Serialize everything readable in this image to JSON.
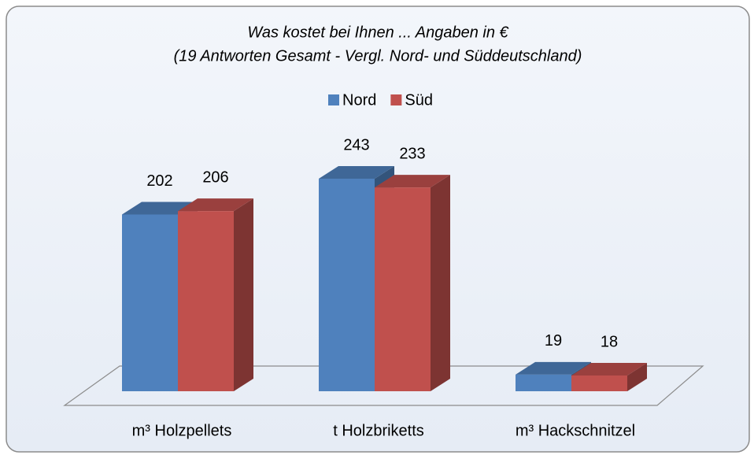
{
  "chart_data": {
    "type": "bar",
    "title": "Was kostet bei Ihnen ... Angaben in €",
    "subtitle": "(19 Antworten Gesamt - Vergl. Nord- und Süddeutschland)",
    "categories": [
      "m³ Holzpellets",
      "t Holzbriketts",
      "m³ Hackschnitzel"
    ],
    "series": [
      {
        "name": "Nord",
        "color": "#4f81bd",
        "values": [
          202,
          243,
          19
        ]
      },
      {
        "name": "Süd",
        "color": "#c0504d",
        "values": [
          206,
          233,
          18
        ]
      }
    ],
    "legend": "top"
  }
}
